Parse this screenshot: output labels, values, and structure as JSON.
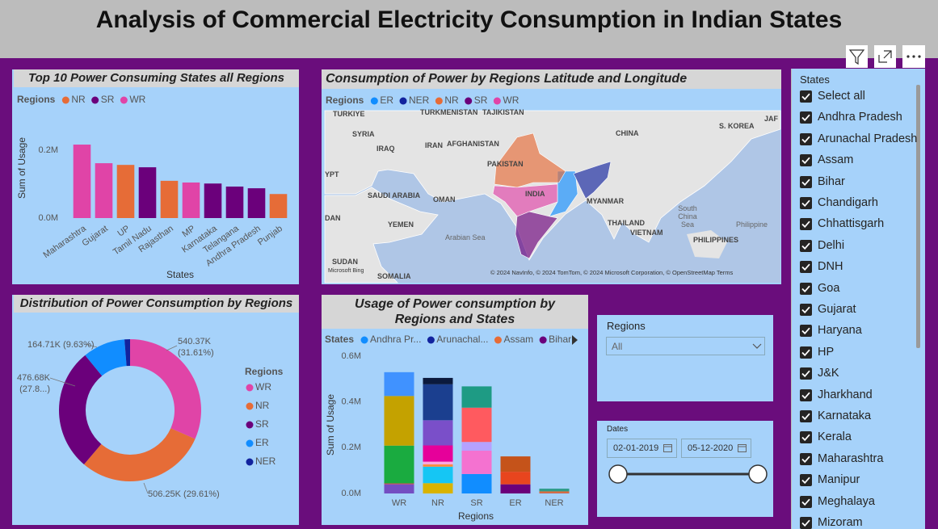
{
  "header": {
    "title": "Analysis of Commercial Electricity Consumption in Indian States"
  },
  "chart_data": [
    {
      "type": "bar",
      "title": "Top 10 Power Consuming States all Regions",
      "legend_title": "Regions",
      "xlabel": "States",
      "ylabel": "Sum of Usage",
      "categories": [
        "Maharashtra",
        "Gujarat",
        "UP",
        "Tamil Nadu",
        "Rajasthan",
        "MP",
        "Karnataka",
        "Telangana",
        "Andhra Pradesh",
        "Punjab"
      ],
      "series": [
        {
          "name": "NR",
          "color": "#E66C37",
          "values": [
            null,
            null,
            157000,
            null,
            110000,
            null,
            null,
            null,
            null,
            71000
          ]
        },
        {
          "name": "SR",
          "color": "#6B007B",
          "values": [
            null,
            null,
            null,
            150000,
            null,
            null,
            102000,
            93000,
            88000,
            null
          ]
        },
        {
          "name": "WR",
          "color": "#E044A7",
          "values": [
            217000,
            162000,
            null,
            null,
            null,
            105000,
            null,
            null,
            null,
            null
          ]
        }
      ],
      "ylim": [
        0,
        260000
      ],
      "yticks": [
        {
          "value": 0,
          "label": "0.0M"
        },
        {
          "value": 200000,
          "label": "0.2M"
        }
      ]
    },
    {
      "type": "map",
      "title": "Consumption of Power by Regions Latitude and Longitude",
      "legend_title": "Regions",
      "series": [
        {
          "name": "ER",
          "color": "#118DFF"
        },
        {
          "name": "NER",
          "color": "#12239E"
        },
        {
          "name": "NR",
          "color": "#E66C37"
        },
        {
          "name": "SR",
          "color": "#6B007B"
        },
        {
          "name": "WR",
          "color": "#E044A7"
        }
      ],
      "labels": [
        "TURKIYE",
        "TURKMENISTAN",
        "TAJIKISTAN",
        "SYRIA",
        "IRAQ",
        "IRAN",
        "AFGHANISTAN",
        "PAKISTAN",
        "CHINA",
        "S. KOREA",
        "JAF",
        "YPT",
        "SAUDI ARABIA",
        "OMAN",
        "INDIA",
        "MYANMAR",
        "THAILAND",
        "VIETNAM",
        "South China Sea",
        "Philippine",
        "PHILIPPINES",
        "YEMEN",
        "DAN",
        "Arabian Sea",
        "SUDAN",
        "SOMALIA"
      ],
      "attribution": "© 2024 NavInfo, © 2024 TomTom, © 2024 Microsoft Corporation, © OpenStreetMap  Terms",
      "logo": "Microsoft Bing"
    },
    {
      "type": "donut",
      "title": "Distribution of Power Consumption by Regions",
      "legend_title": "Regions",
      "categories": [
        "WR",
        "NR",
        "SR",
        "ER",
        "NER"
      ],
      "colors": [
        "#E044A7",
        "#E66C37",
        "#6B007B",
        "#118DFF",
        "#12239E"
      ],
      "values": [
        540370,
        506250,
        476680,
        164710,
        21500
      ],
      "value_labels": [
        "540.37K (31.61%)",
        "506.25K (29.61%)",
        "476.68K (27.8...)",
        "164.71K (9.63%)",
        null
      ]
    },
    {
      "type": "stacked_bar",
      "title": "Usage of Power consumption by Regions and States",
      "legend_title": "States",
      "xlabel": "Regions",
      "ylabel": "Sum of Usage",
      "categories": [
        "WR",
        "NR",
        "SR",
        "ER",
        "NER"
      ],
      "series": [
        {
          "name": "Andhra Pr...",
          "color": "#118DFF",
          "values": [
            null,
            null,
            85000,
            null,
            null
          ]
        },
        {
          "name": "Arunachal...",
          "color": "#12239E",
          "values": [
            null,
            null,
            null,
            null,
            1000
          ]
        },
        {
          "name": "Assam",
          "color": "#E66C37",
          "values": [
            null,
            null,
            null,
            null,
            8000
          ]
        },
        {
          "name": "Bihar",
          "color": "#6B007B",
          "values": [
            null,
            null,
            null,
            40000,
            null
          ]
        },
        {
          "color": "#744EC2",
          "values": [
            40000,
            null,
            null,
            null,
            null
          ]
        },
        {
          "color": "#D64550",
          "values": [
            4000,
            null,
            null,
            null,
            null
          ]
        },
        {
          "color": "#1AAB40",
          "values": [
            165000,
            null,
            null,
            null,
            null
          ]
        },
        {
          "color": "#C4A200",
          "values": [
            217000,
            null,
            null,
            null,
            null
          ]
        },
        {
          "color": "#4092FF",
          "values": [
            104000,
            null,
            null,
            null,
            null
          ]
        },
        {
          "color": "#D9B300",
          "values": [
            null,
            45000,
            null,
            null,
            null
          ]
        },
        {
          "color": "#15C6F4",
          "values": [
            null,
            72000,
            null,
            null,
            null
          ]
        },
        {
          "color": "#FF8A3D",
          "values": [
            null,
            10000,
            null,
            null,
            null
          ]
        },
        {
          "color": "#F9A8E0",
          "values": [
            null,
            12000,
            null,
            null,
            null
          ]
        },
        {
          "color": "#E6009A",
          "values": [
            null,
            71000,
            null,
            null,
            null
          ]
        },
        {
          "color": "#7A4FC9",
          "values": [
            null,
            110000,
            null,
            null,
            null
          ]
        },
        {
          "color": "#1B3F8F",
          "values": [
            null,
            157000,
            null,
            null,
            null
          ]
        },
        {
          "color": "#0B1A3D",
          "values": [
            null,
            28000,
            null,
            null,
            null
          ]
        },
        {
          "color": "#F472D0",
          "values": [
            null,
            null,
            102000,
            null,
            null
          ]
        },
        {
          "color": "#B5A1FF",
          "values": [
            null,
            null,
            38000,
            null,
            null
          ]
        },
        {
          "color": "#FF5A5F",
          "values": [
            null,
            null,
            150000,
            null,
            null
          ]
        },
        {
          "color": "#1E9B84",
          "values": [
            null,
            null,
            93000,
            null,
            null
          ]
        },
        {
          "color": "#E8451E",
          "values": [
            null,
            null,
            null,
            55000,
            null
          ]
        },
        {
          "color": "#C5531A",
          "values": [
            null,
            null,
            null,
            67000,
            null
          ]
        },
        {
          "color": "#2E9C8A",
          "values": [
            null,
            null,
            null,
            null,
            12000
          ]
        }
      ],
      "ylim": [
        0,
        600000
      ],
      "yticks": [
        {
          "value": 0,
          "label": "0.0M"
        },
        {
          "value": 200000,
          "label": "0.2M"
        },
        {
          "value": 400000,
          "label": "0.4M"
        },
        {
          "value": 600000,
          "label": "0.6M"
        }
      ]
    }
  ],
  "slicers": {
    "regions": {
      "title": "Regions",
      "selected": "All"
    },
    "dates": {
      "title": "Dates",
      "start": "02-01-2019",
      "end": "05-12-2020"
    },
    "states": {
      "title": "States",
      "items": [
        "Select all",
        "Andhra Pradesh",
        "Arunachal Pradesh",
        "Assam",
        "Bihar",
        "Chandigarh",
        "Chhattisgarh",
        "Delhi",
        "DNH",
        "Goa",
        "Gujarat",
        "Haryana",
        "HP",
        "J&K",
        "Jharkhand",
        "Karnataka",
        "Kerala",
        "Maharashtra",
        "Manipur",
        "Meghalaya",
        "Mizoram"
      ]
    }
  }
}
